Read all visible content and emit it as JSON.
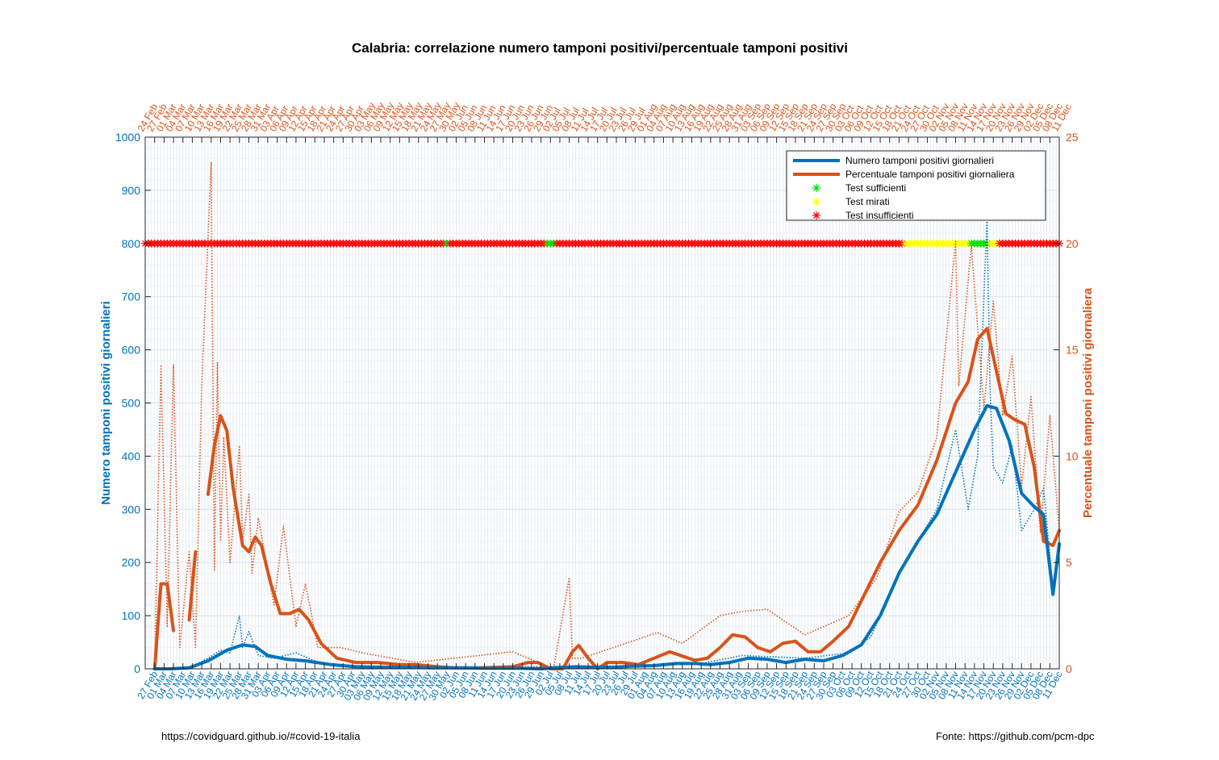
{
  "chart_data": {
    "type": "line",
    "title": "Calabria: correlazione numero tamponi positivi/percentuale tamponi positivi",
    "ylabel_left": "Numero tamponi positivi giornalieri",
    "ylabel_right": "Percentuale tamponi positivi giornaliera",
    "ylim_left": [
      0,
      1000
    ],
    "ylim_right": [
      0,
      25
    ],
    "yticks_left": [
      "0",
      "100",
      "200",
      "300",
      "400",
      "500",
      "600",
      "700",
      "800",
      "900",
      "1000"
    ],
    "yticks_right": [
      "0",
      "5",
      "10",
      "15",
      "20",
      "25"
    ],
    "x_start": "24 Feb",
    "x_end": "11 Dec",
    "top_tick_labels": [
      "24 Feb",
      "27 Feb",
      "01 Mar",
      "04 Mar",
      "07 Mar",
      "10 Mar",
      "13 Mar",
      "16 Mar",
      "19 Mar",
      "22 Mar",
      "25 Mar",
      "28 Mar",
      "31 Mar",
      "03 Apr",
      "06 Apr",
      "09 Apr",
      "12 Apr",
      "15 Apr",
      "18 Apr",
      "21 Apr",
      "24 Apr",
      "27 Apr",
      "30 Apr",
      "03 May",
      "06 May",
      "09 May",
      "12 May",
      "15 May",
      "18 May",
      "21 May",
      "24 May",
      "27 May",
      "30 May",
      "02 Jun",
      "05 Jun",
      "08 Jun",
      "11 Jun",
      "14 Jun",
      "17 Jun",
      "20 Jun",
      "23 Jun",
      "26 Jun",
      "29 Jun",
      "02 Jul",
      "05 Jul",
      "08 Jul",
      "11 Jul",
      "14 Jul",
      "17 Jul",
      "20 Jul",
      "23 Jul",
      "26 Jul",
      "29 Jul",
      "01 Aug",
      "04 Aug",
      "07 Aug",
      "10 Aug",
      "13 Aug",
      "16 Aug",
      "19 Aug",
      "22 Aug",
      "25 Aug",
      "28 Aug",
      "31 Aug",
      "03 Sep",
      "06 Sep",
      "09 Sep",
      "12 Sep",
      "15 Sep",
      "18 Sep",
      "21 Sep",
      "24 Sep",
      "27 Sep",
      "30 Sep",
      "03 Oct",
      "06 Oct",
      "09 Oct",
      "12 Oct",
      "15 Oct",
      "18 Oct",
      "21 Oct",
      "24 Oct",
      "27 Oct",
      "30 Oct",
      "02 Nov",
      "05 Nov",
      "08 Nov",
      "11 Nov",
      "14 Nov",
      "17 Nov",
      "20 Nov",
      "23 Nov",
      "26 Nov",
      "29 Nov",
      "02 Dec",
      "05 Dec",
      "08 Dec",
      "11 Dec"
    ],
    "bottom_tick_labels": [
      "27 Feb",
      "01 Mar",
      "04 Mar",
      "07 Mar",
      "10 Mar",
      "13 Mar",
      "16 Mar",
      "19 Mar",
      "22 Mar",
      "25 Mar",
      "28 Mar",
      "31 Mar",
      "03 Apr",
      "06 Apr",
      "09 Apr",
      "12 Apr",
      "15 Apr",
      "18 Apr",
      "21 Apr",
      "24 Apr",
      "27 Apr",
      "30 Apr",
      "03 May",
      "06 May",
      "09 May",
      "12 May",
      "15 May",
      "18 May",
      "21 May",
      "24 May",
      "27 May",
      "30 May",
      "02 Jun",
      "05 Jun",
      "08 Jun",
      "11 Jun",
      "14 Jun",
      "17 Jun",
      "20 Jun",
      "23 Jun",
      "26 Jun",
      "29 Jun",
      "02 Jul",
      "05 Jul",
      "08 Jul",
      "11 Jul",
      "14 Jul",
      "17 Jul",
      "20 Jul",
      "23 Jul",
      "26 Jul",
      "29 Jul",
      "01 Aug",
      "04 Aug",
      "07 Aug",
      "10 Aug",
      "13 Aug",
      "16 Aug",
      "19 Aug",
      "22 Aug",
      "25 Aug",
      "28 Aug",
      "31 Aug",
      "03 Sep",
      "06 Sep",
      "09 Sep",
      "12 Sep",
      "15 Sep",
      "18 Sep",
      "21 Sep",
      "24 Sep",
      "27 Sep",
      "30 Sep",
      "03 Oct",
      "06 Oct",
      "09 Oct",
      "12 Oct",
      "15 Oct",
      "18 Oct",
      "21 Oct",
      "24 Oct",
      "27 Oct",
      "30 Oct",
      "02 Nov",
      "05 Nov",
      "08 Nov",
      "11 Nov",
      "14 Nov",
      "17 Nov",
      "20 Nov",
      "23 Nov",
      "26 Nov",
      "29 Nov",
      "02 Dec",
      "05 Dec",
      "08 Dec",
      "11 Dec"
    ],
    "grid": true,
    "legend_position": "top-right",
    "series": [
      {
        "name": "Numero tamponi positivi giornalieri",
        "axis": "left",
        "color": "#0072BD",
        "smoothed": {
          "x": [
            "27 Feb",
            "03 Mar",
            "09 Mar",
            "15 Mar",
            "21 Mar",
            "26 Mar",
            "30 Mar",
            "03 Apr",
            "09 Apr",
            "15 Apr",
            "23 Apr",
            "01 May",
            "09 May",
            "17 May",
            "25 May",
            "02 Jun",
            "12 Jun",
            "22 Jun",
            "29 Jun",
            "04 Jul",
            "10 Jul",
            "16 Jul",
            "22 Jul",
            "28 Jul",
            "04 Aug",
            "11 Aug",
            "17 Aug",
            "22 Aug",
            "28 Aug",
            "03 Sep",
            "09 Sep",
            "15 Sep",
            "21 Sep",
            "27 Sep",
            "03 Oct",
            "09 Oct",
            "15 Oct",
            "21 Oct",
            "27 Oct",
            "02 Nov",
            "08 Nov",
            "14 Nov",
            "18 Nov",
            "21 Nov",
            "25 Nov",
            "29 Nov",
            "03 Dec",
            "06 Dec",
            "09 Dec",
            "11 Dec"
          ],
          "y": [
            0,
            0,
            2,
            15,
            35,
            45,
            42,
            25,
            18,
            15,
            8,
            4,
            3,
            3,
            2,
            2,
            1,
            1,
            0,
            2,
            4,
            3,
            3,
            5,
            6,
            10,
            10,
            8,
            12,
            20,
            18,
            12,
            18,
            15,
            25,
            45,
            100,
            180,
            240,
            290,
            370,
            450,
            495,
            490,
            430,
            330,
            305,
            290,
            140,
            235
          ]
        },
        "raw": {
          "x": [
            "27 Feb",
            "05 Mar",
            "10 Mar",
            "15 Mar",
            "19 Mar",
            "22 Mar",
            "25 Mar",
            "26 Mar",
            "28 Mar",
            "31 Mar",
            "05 Apr",
            "12 Apr",
            "20 Apr",
            "01 May",
            "20 May",
            "20 Jun",
            "05 Jul",
            "01 Aug",
            "19 Aug",
            "01 Sep",
            "21 Sep",
            "05 Oct",
            "12 Oct",
            "21 Oct",
            "27 Oct",
            "02 Nov",
            "08 Nov",
            "12 Nov",
            "15 Nov",
            "18 Nov",
            "19 Nov",
            "20 Nov",
            "23 Nov",
            "26 Nov",
            "29 Nov",
            "03 Dec",
            "06 Dec",
            "09 Dec",
            "11 Dec"
          ],
          "y": [
            0,
            0,
            5,
            20,
            35,
            30,
            100,
            40,
            70,
            25,
            20,
            30,
            10,
            5,
            2,
            3,
            5,
            5,
            10,
            25,
            20,
            30,
            60,
            180,
            240,
            300,
            450,
            300,
            400,
            850,
            520,
            380,
            350,
            420,
            260,
            300,
            340,
            150,
            240
          ]
        }
      },
      {
        "name": "Percentuale tamponi positivi giornaliera",
        "axis": "right",
        "color": "#D95319",
        "smoothed": {
          "x": [
            "27 Feb",
            "29 Feb",
            "02 Mar",
            "04 Mar",
            "06 Mar",
            "09 Mar",
            "11 Mar",
            "13 Mar",
            "15 Mar",
            "17 Mar",
            "19 Mar",
            "21 Mar",
            "23 Mar",
            "26 Mar",
            "28 Mar",
            "30 Mar",
            "01 Apr",
            "04 Apr",
            "07 Apr",
            "10 Apr",
            "13 Apr",
            "16 Apr",
            "20 Apr",
            "25 Apr",
            "01 May",
            "08 May",
            "15 May",
            "20 May",
            "27 May",
            "01 Jun",
            "10 Jun",
            "20 Jun",
            "25 Jun",
            "28 Jun",
            "02 Jul",
            "06 Jul",
            "09 Jul",
            "11 Jul",
            "14 Jul",
            "17 Jul",
            "20 Jul",
            "25 Jul",
            "30 Jul",
            "04 Aug",
            "09 Aug",
            "13 Aug",
            "17 Aug",
            "21 Aug",
            "25 Aug",
            "29 Aug",
            "02 Sep",
            "06 Sep",
            "10 Sep",
            "14 Sep",
            "18 Sep",
            "22 Sep",
            "26 Sep",
            "30 Sep",
            "05 Oct",
            "10 Oct",
            "15 Oct",
            "21 Oct",
            "27 Oct",
            "02 Nov",
            "08 Nov",
            "12 Nov",
            "15 Nov",
            "18 Nov",
            "21 Nov",
            "24 Nov",
            "27 Nov",
            "30 Nov",
            "03 Dec",
            "06 Dec",
            "09 Dec",
            "11 Dec"
          ],
          "y": [
            0,
            4,
            4,
            1.8,
            null,
            2.3,
            5.5,
            null,
            8.2,
            10.5,
            11.9,
            11.2,
            8.5,
            5.8,
            5.5,
            6.2,
            5.8,
            4.0,
            2.6,
            2.6,
            2.8,
            2.3,
            1.2,
            0.5,
            0.3,
            0.3,
            0.2,
            0.2,
            0.1,
            0.05,
            0.05,
            0.1,
            0.3,
            0.3,
            0,
            0,
            0.8,
            1.1,
            0.5,
            0,
            0.3,
            0.3,
            0.2,
            0.5,
            0.8,
            0.6,
            0.4,
            0.5,
            1.0,
            1.6,
            1.5,
            1.0,
            0.8,
            1.2,
            1.3,
            0.8,
            0.8,
            1.3,
            2.0,
            3.5,
            5.0,
            6.5,
            7.7,
            9.8,
            12.5,
            13.5,
            15.5,
            16.0,
            14.0,
            12.0,
            11.7,
            11.5,
            9.5,
            6.0,
            5.8,
            6.5
          ]
        },
        "raw": {
          "x": [
            "27 Feb",
            "29 Feb",
            "02 Mar",
            "04 Mar",
            "06 Mar",
            "09 Mar",
            "11 Mar",
            "13 Mar",
            "16 Mar",
            "17 Mar",
            "18 Mar",
            "19 Mar",
            "20 Mar",
            "22 Mar",
            "25 Mar",
            "26 Mar",
            "28 Mar",
            "29 Mar",
            "31 Mar",
            "05 Apr",
            "08 Apr",
            "12 Apr",
            "15 Apr",
            "19 Apr",
            "26 Apr",
            "05 May",
            "20 May",
            "20 Jun",
            "03 Jul",
            "08 Jul",
            "09 Jul",
            "12 Jul",
            "05 Aug",
            "13 Aug",
            "25 Aug",
            "01 Sep",
            "09 Sep",
            "21 Sep",
            "05 Oct",
            "14 Oct",
            "21 Oct",
            "27 Oct",
            "02 Nov",
            "08 Nov",
            "09 Nov",
            "13 Nov",
            "17 Nov",
            "20 Nov",
            "23 Nov",
            "26 Nov",
            "29 Nov",
            "02 Dec",
            "05 Dec",
            "08 Dec",
            "11 Dec"
          ],
          "y": [
            0,
            14.3,
            2,
            14.3,
            1,
            5.5,
            1,
            13.4,
            23.8,
            4.6,
            14.4,
            6,
            10.9,
            5,
            10.5,
            6,
            8.2,
            4.5,
            7.1,
            3,
            6.7,
            2,
            4,
            1,
            1,
            0.7,
            0.3,
            0.8,
            0,
            4.3,
            0.5,
            0.5,
            1.7,
            1.2,
            2.5,
            2.7,
            2.8,
            1.6,
            2.5,
            4.3,
            7.4,
            8.3,
            10.9,
            20.1,
            13.3,
            19.9,
            12.2,
            17.3,
            11.9,
            14.7,
            8.6,
            12.8,
            6.4,
            11.9,
            6.5
          ]
        }
      }
    ],
    "test_status": {
      "y_value_left": 800,
      "legend": [
        {
          "label": "Test sufficienti",
          "color": "#00E000"
        },
        {
          "label": "Test mirati",
          "color": "#FFFF00"
        },
        {
          "label": "Test insufficienti",
          "color": "#FF0000"
        }
      ],
      "periods": [
        {
          "from": "24 Feb",
          "to": "29 May",
          "status": "insufficienti"
        },
        {
          "from": "30 May",
          "to": "30 May",
          "status": "sufficienti"
        },
        {
          "from": "31 May",
          "to": "30 Jun",
          "status": "insufficienti"
        },
        {
          "from": "01 Jul",
          "to": "03 Jul",
          "status": "sufficienti"
        },
        {
          "from": "04 Jul",
          "to": "22 Oct",
          "status": "insufficienti"
        },
        {
          "from": "23 Oct",
          "to": "12 Nov",
          "status": "mirati"
        },
        {
          "from": "13 Nov",
          "to": "18 Nov",
          "status": "sufficienti"
        },
        {
          "from": "19 Nov",
          "to": "21 Nov",
          "status": "mirati"
        },
        {
          "from": "22 Nov",
          "to": "11 Dec",
          "status": "insufficienti"
        }
      ]
    }
  },
  "footer": {
    "left": "https://covidguard.github.io/#covid-19-italia",
    "right": "Fonte: https://github.com/pcm-dpc"
  }
}
